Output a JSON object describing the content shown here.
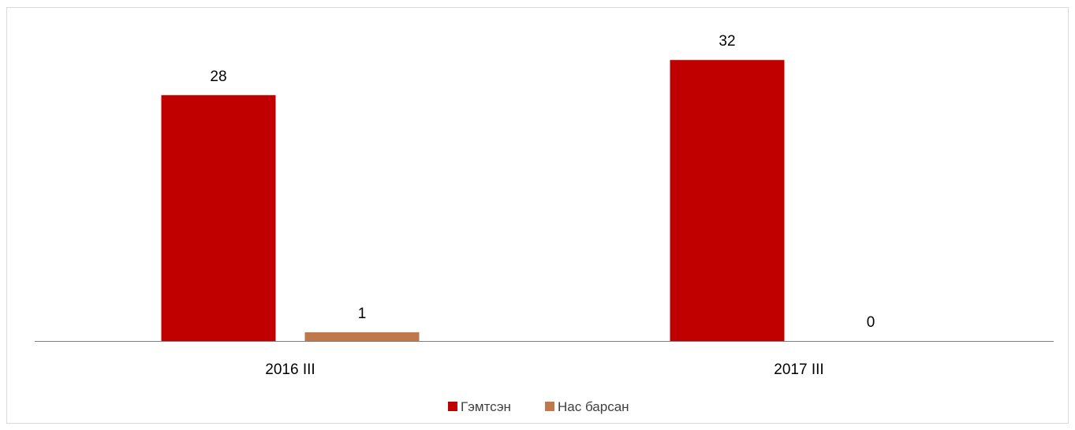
{
  "chart_data": {
    "type": "bar",
    "categories": [
      "2016 III",
      "2017 III"
    ],
    "series": [
      {
        "name": "Гэмтсэн",
        "color": "#c00000",
        "values": [
          28,
          32
        ]
      },
      {
        "name": "Нас барсан",
        "color": "#c0784a",
        "values": [
          1,
          0
        ]
      }
    ],
    "data_labels": true,
    "legend_position": "bottom",
    "grid": false
  }
}
